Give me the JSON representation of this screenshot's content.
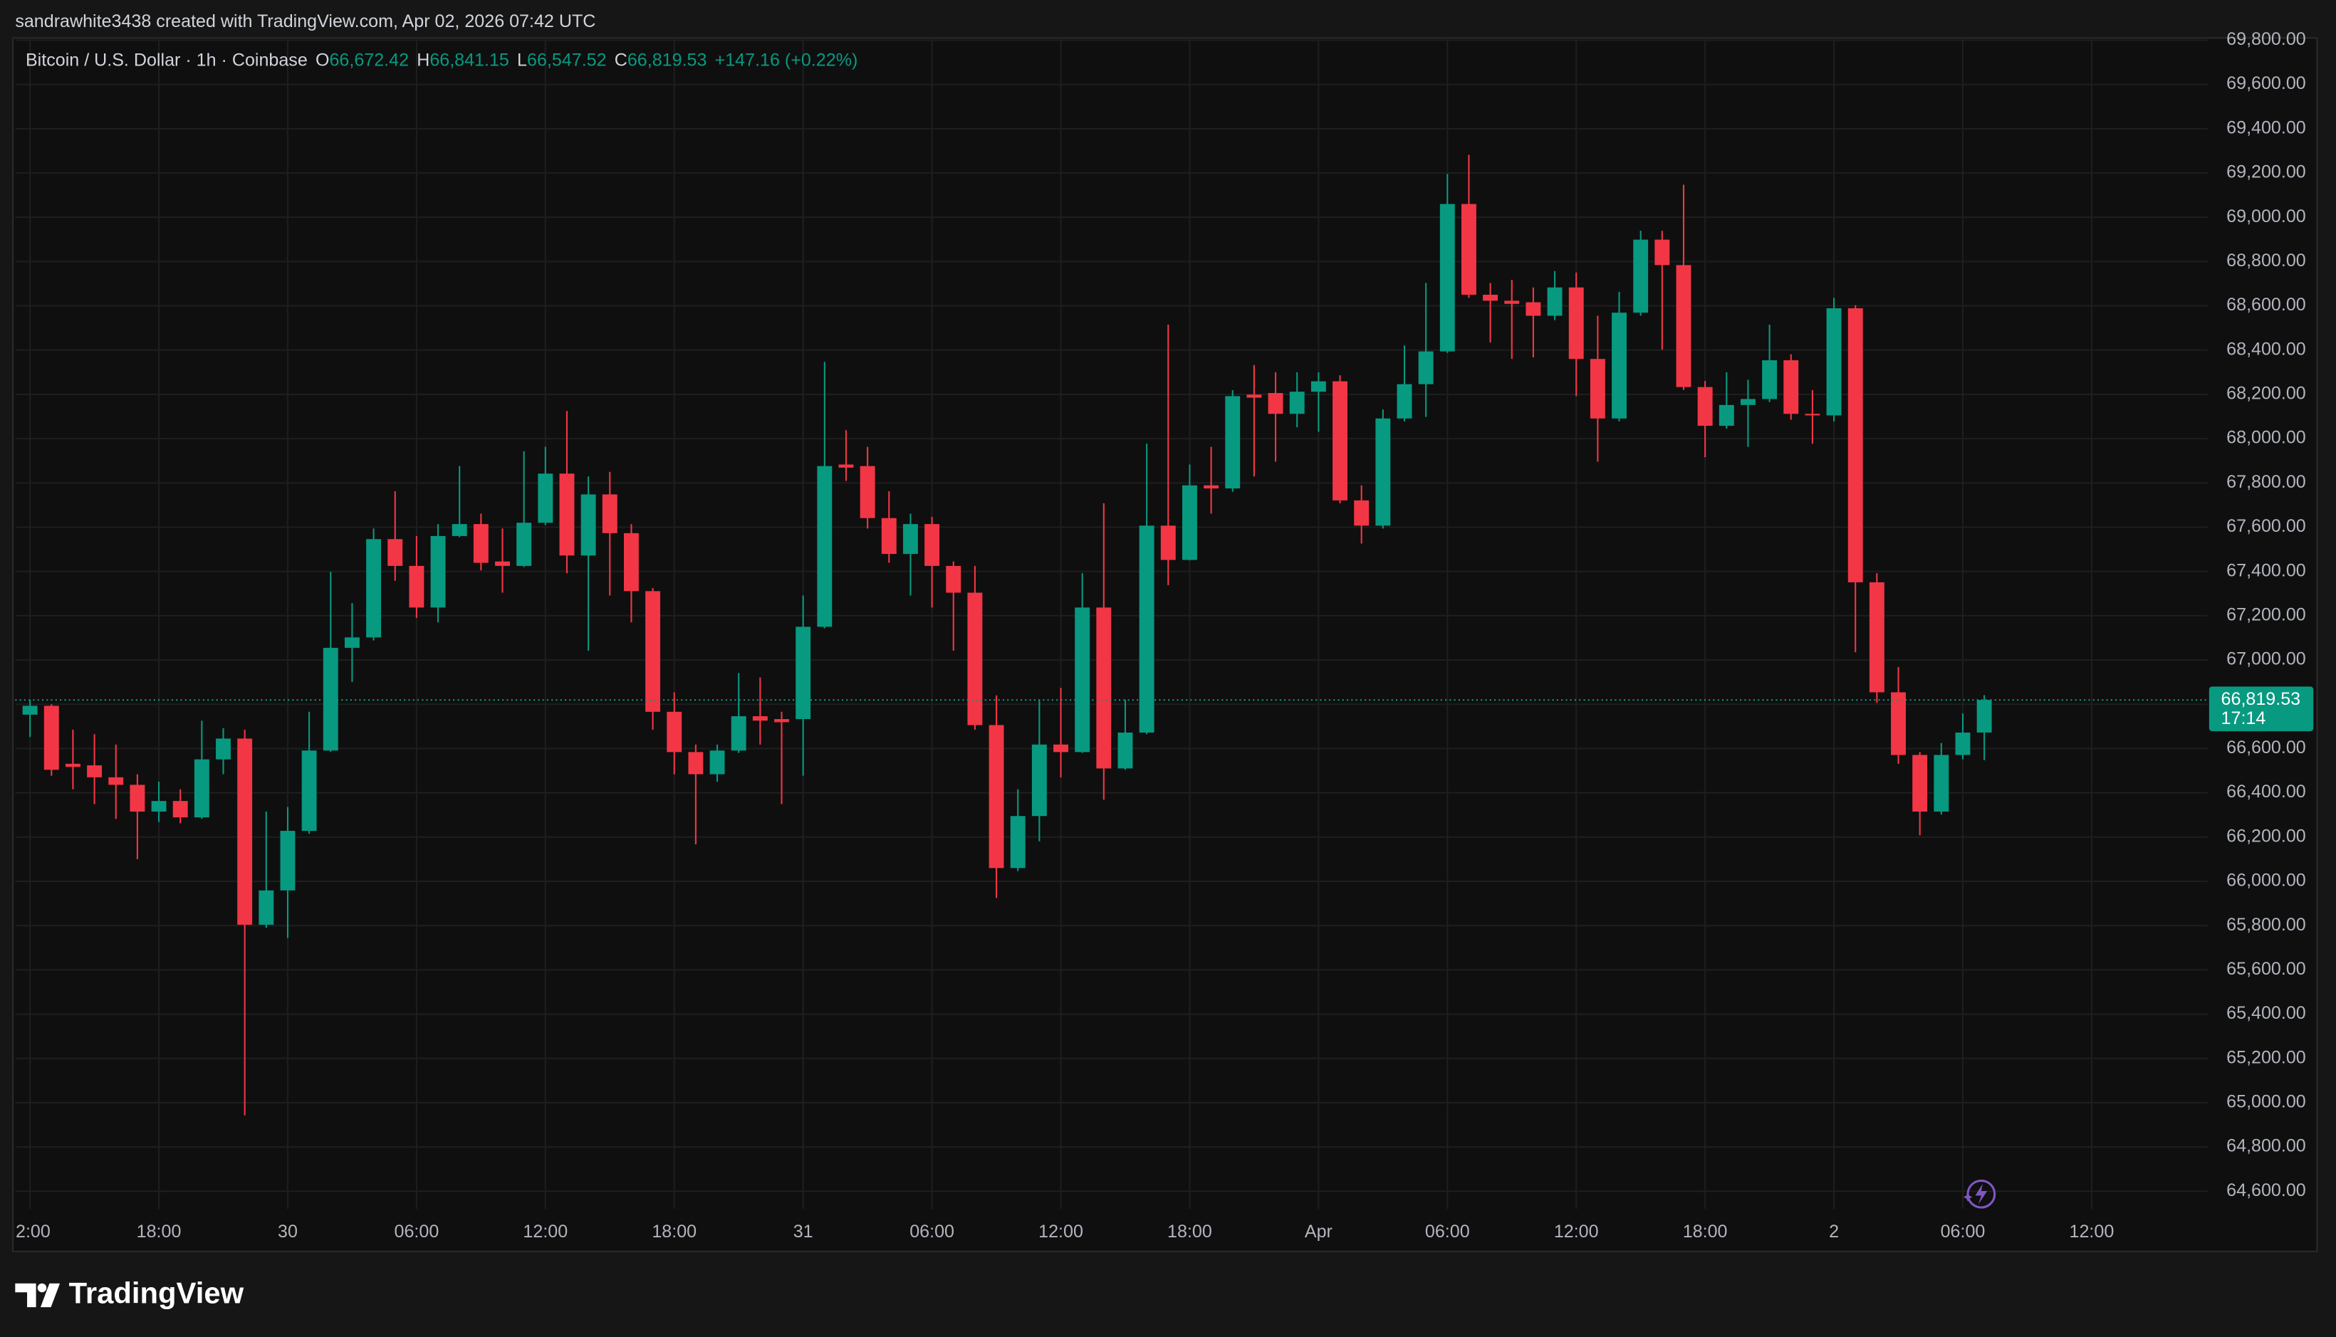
{
  "attribution": "sandrawhite3438 created with TradingView.com, Apr 02, 2026 07:42 UTC",
  "header": {
    "symbol": "Bitcoin / U.S. Dollar · 1h · Coinbase",
    "open_label": "O",
    "open": "66,672.42",
    "high_label": "H",
    "high": "66,841.15",
    "low_label": "L",
    "low": "66,547.52",
    "close_label": "C",
    "close": "66,819.53",
    "change": "+147.16 (+0.22%)"
  },
  "brand": "TradingView",
  "chart_data": {
    "type": "candlestick",
    "up_color": "#089981",
    "down_color": "#f23645",
    "grid": true,
    "x": [
      -12,
      -11,
      -10,
      -9,
      -8,
      -7,
      -6,
      -5,
      -4,
      -3,
      -2,
      -1,
      0,
      1,
      2,
      3,
      4,
      5,
      6,
      7,
      8,
      9,
      10,
      11,
      12,
      13,
      14,
      15,
      16,
      17,
      18,
      19,
      20,
      21,
      22,
      23,
      24,
      25,
      26,
      27,
      28,
      29,
      30,
      31,
      32,
      33,
      34,
      35,
      36,
      37,
      38,
      39,
      40,
      41,
      42,
      43,
      44,
      45,
      46,
      47,
      48,
      49,
      50,
      51,
      52,
      53,
      54,
      55,
      56,
      57,
      58,
      59,
      60,
      61,
      62,
      63,
      64,
      65,
      66,
      67,
      68,
      69,
      70,
      71,
      72,
      73,
      74,
      75,
      76,
      77,
      78,
      79
    ],
    "open": [
      66753,
      66793,
      66531,
      66524,
      66470,
      66436,
      66315,
      66363,
      66289,
      66551,
      66645,
      65804,
      65959,
      66228,
      66591,
      67055,
      67102,
      67546,
      67425,
      67237,
      67560,
      67614,
      67445,
      67425,
      67620,
      67842,
      67472,
      67748,
      67573,
      67311,
      66766,
      66584,
      66484,
      66591,
      66746,
      66733,
      66733,
      67150,
      67883,
      67876,
      67641,
      67479,
      67614,
      67425,
      67304,
      66706,
      66060,
      66295,
      66618,
      66584,
      67237,
      66510,
      66672,
      67607,
      67452,
      67789,
      67775,
      68199,
      68206,
      68112,
      68212,
      68259,
      67721,
      67607,
      68091,
      68246,
      68394,
      69060,
      68650,
      68623,
      68616,
      68555,
      68683,
      68360,
      68091,
      68569,
      68899,
      68784,
      68233,
      68058,
      68152,
      68179,
      68354,
      68112,
      68105,
      68589,
      67351,
      66854,
      66571,
      66315,
      66571,
      66672.42
    ],
    "high": [
      66820,
      66800,
      66685,
      66665,
      66618,
      66484,
      66450,
      66416,
      66726,
      66692,
      66685,
      66315,
      66336,
      66766,
      67398,
      67257,
      67594,
      67762,
      67560,
      67614,
      67876,
      67661,
      67594,
      67943,
      67963,
      68125,
      67829,
      67850,
      67614,
      67325,
      66854,
      66618,
      66618,
      66941,
      66921,
      66766,
      67291,
      68347,
      68038,
      67963,
      67762,
      67661,
      67647,
      67445,
      67425,
      66840,
      66416,
      66820,
      66874,
      67392,
      67708,
      66820,
      67977,
      68515,
      67883,
      67963,
      68219,
      68333,
      68300,
      68300,
      68300,
      68286,
      67789,
      68132,
      68421,
      68703,
      69195,
      69282,
      68703,
      68717,
      68683,
      68757,
      68750,
      68555,
      68663,
      68939,
      68939,
      69147,
      68260,
      68300,
      68266,
      68515,
      68381,
      68219,
      68636,
      68603,
      67392,
      66968,
      66584,
      66625,
      66759,
      66841.15
    ],
    "low": [
      66652,
      66477,
      66416,
      66349,
      66282,
      66100,
      66268,
      66262,
      66282,
      66484,
      64943,
      65790,
      65744,
      66215,
      66584,
      66901,
      67088,
      67358,
      67190,
      67170,
      67555,
      67405,
      67304,
      67420,
      67610,
      67392,
      67042,
      67291,
      67170,
      66685,
      66484,
      66167,
      66450,
      66580,
      66618,
      66349,
      66477,
      67143,
      67809,
      67594,
      67439,
      67291,
      67237,
      67042,
      66685,
      65925,
      66046,
      66181,
      66470,
      66580,
      66369,
      66504,
      66665,
      67338,
      67450,
      67661,
      67760,
      67829,
      67896,
      68051,
      68031,
      67708,
      67526,
      67594,
      68078,
      68098,
      68387,
      68636,
      68434,
      68360,
      68367,
      68535,
      68192,
      67896,
      68078,
      68555,
      68401,
      68220,
      67916,
      68045,
      67963,
      68165,
      68085,
      67977,
      68078,
      67035,
      66806,
      66531,
      66208,
      66302,
      66551,
      66547.52
    ],
    "close": [
      66793,
      66504,
      66517,
      66470,
      66436,
      66315,
      66363,
      66289,
      66551,
      66645,
      65804,
      65959,
      66228,
      66591,
      67055,
      67102,
      67546,
      67425,
      67237,
      67560,
      67614,
      67439,
      67425,
      67620,
      67842,
      67472,
      67748,
      67573,
      67311,
      66766,
      66584,
      66484,
      66591,
      66746,
      66726,
      66719,
      67150,
      67876,
      67869,
      67641,
      67479,
      67614,
      67425,
      67304,
      66706,
      66060,
      66295,
      66618,
      66584,
      67237,
      66510,
      66672,
      67607,
      67452,
      67789,
      67775,
      68192,
      68185,
      68112,
      68212,
      68259,
      67721,
      67607,
      68091,
      68246,
      68394,
      69060,
      68650,
      68623,
      68609,
      68555,
      68683,
      68360,
      68091,
      68569,
      68899,
      68784,
      68233,
      68058,
      68152,
      68179,
      68354,
      68112,
      68105,
      68589,
      67351,
      66854,
      66571,
      66315,
      66571,
      66672,
      66819.53
    ],
    "xlim": [
      -12.69,
      89.4
    ],
    "xticks": [
      {
        "value": -12,
        "label": "2:00"
      },
      {
        "value": -6,
        "label": "18:00"
      },
      {
        "value": 0,
        "label": "30"
      },
      {
        "value": 6,
        "label": "06:00"
      },
      {
        "value": 12,
        "label": "12:00"
      },
      {
        "value": 18,
        "label": "18:00"
      },
      {
        "value": 24,
        "label": "31"
      },
      {
        "value": 30,
        "label": "06:00"
      },
      {
        "value": 36,
        "label": "12:00"
      },
      {
        "value": 42,
        "label": "18:00"
      },
      {
        "value": 48,
        "label": "Apr"
      },
      {
        "value": 54,
        "label": "06:00"
      },
      {
        "value": 60,
        "label": "12:00"
      },
      {
        "value": 66,
        "label": "18:00"
      },
      {
        "value": 72,
        "label": "2"
      },
      {
        "value": 78,
        "label": "06:00"
      },
      {
        "value": 84,
        "label": "12:00"
      }
    ],
    "ylim": [
      64520,
      69810
    ],
    "yticks": [
      {
        "value": 64600,
        "label": "64,600.00"
      },
      {
        "value": 64800,
        "label": "64,800.00"
      },
      {
        "value": 65000,
        "label": "65,000.00"
      },
      {
        "value": 65200,
        "label": "65,200.00"
      },
      {
        "value": 65400,
        "label": "65,400.00"
      },
      {
        "value": 65600,
        "label": "65,600.00"
      },
      {
        "value": 65800,
        "label": "65,800.00"
      },
      {
        "value": 66000,
        "label": "66,000.00"
      },
      {
        "value": 66200,
        "label": "66,200.00"
      },
      {
        "value": 66400,
        "label": "66,400.00"
      },
      {
        "value": 66600,
        "label": "66,600.00"
      },
      {
        "value": 66800,
        "label": "66,800.00"
      },
      {
        "value": 67000,
        "label": "67,000.00"
      },
      {
        "value": 67200,
        "label": "67,200.00"
      },
      {
        "value": 67400,
        "label": "67,400.00"
      },
      {
        "value": 67600,
        "label": "67,600.00"
      },
      {
        "value": 67800,
        "label": "67,800.00"
      },
      {
        "value": 68000,
        "label": "68,000.00"
      },
      {
        "value": 68200,
        "label": "68,200.00"
      },
      {
        "value": 68400,
        "label": "68,400.00"
      },
      {
        "value": 68600,
        "label": "68,600.00"
      },
      {
        "value": 68800,
        "label": "68,800.00"
      },
      {
        "value": 69000,
        "label": "69,000.00"
      },
      {
        "value": 69200,
        "label": "69,200.00"
      },
      {
        "value": 69400,
        "label": "69,400.00"
      },
      {
        "value": 69600,
        "label": "69,600.00"
      },
      {
        "value": 69800,
        "label": "69,800.00"
      }
    ],
    "last_price": {
      "value": 66819.53,
      "label": "66,819.53"
    },
    "countdown": "17:14"
  }
}
